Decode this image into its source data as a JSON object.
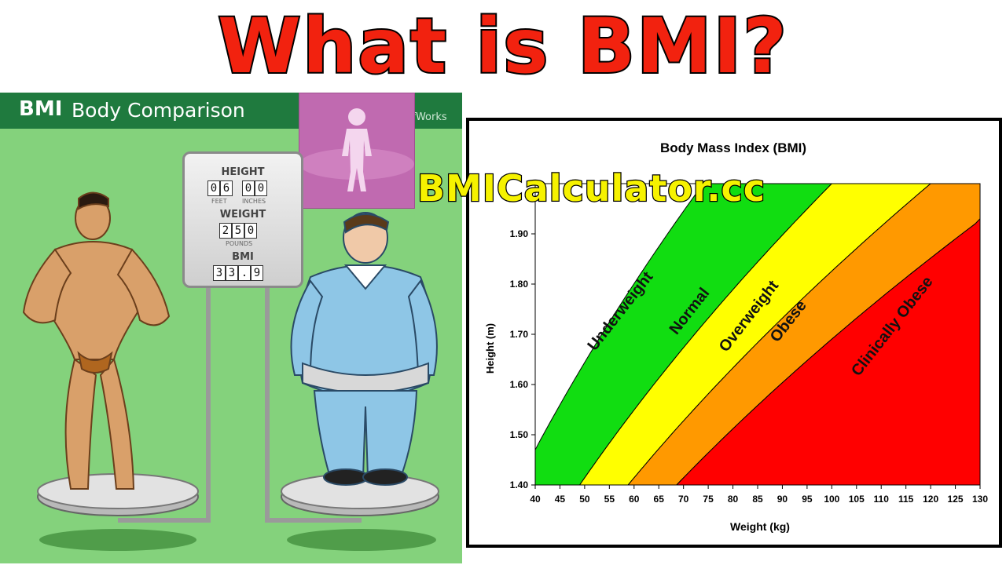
{
  "headline": "What is BMI?",
  "left_panel": {
    "header_bold": "BMI",
    "header_text": "Body Comparison",
    "header_credit": "ffWorks",
    "scale": {
      "height_label": "HEIGHT",
      "feet_digits": [
        "0",
        "6"
      ],
      "inches_digits": [
        "0",
        "0"
      ],
      "feet_label": "FEET",
      "inches_label": "INCHES",
      "weight_label": "WEIGHT",
      "weight_digits": [
        "2",
        "5",
        "0"
      ],
      "pounds_label": "POUNDS",
      "bmi_label": "BMI",
      "bmi_digits": [
        "3",
        "3",
        ".",
        "9"
      ]
    },
    "colors": {
      "panel": "#84d27c",
      "header": "#1f7a3e",
      "tile": "#c06ab0"
    }
  },
  "watermark": "BMICalculator.cc",
  "chart_data": {
    "type": "area",
    "title": "Body Mass Index (BMI)",
    "xlabel": "Weight (kg)",
    "ylabel": "Height (m)",
    "xlim": [
      40,
      130
    ],
    "ylim": [
      1.4,
      2.0
    ],
    "x_ticks": [
      "40",
      "45",
      "50",
      "55",
      "60",
      "65",
      "70",
      "75",
      "80",
      "85",
      "90",
      "95",
      "100",
      "105",
      "110",
      "115",
      "120",
      "125",
      "130"
    ],
    "y_ticks": [
      "1.40",
      "1.50",
      "1.60",
      "1.70",
      "1.80",
      "1.90"
    ],
    "bands": [
      {
        "name": "Underweight",
        "color": "#ffffff",
        "bmi_range": [
          0,
          18.5
        ]
      },
      {
        "name": "Normal",
        "color": "#11dd11",
        "bmi_range": [
          18.5,
          25
        ]
      },
      {
        "name": "Overweight",
        "color": "#ffff00",
        "bmi_range": [
          25,
          30
        ]
      },
      {
        "name": "Obese",
        "color": "#ff9900",
        "bmi_range": [
          30,
          35
        ]
      },
      {
        "name": "Clinically Obese",
        "color": "#ff0000",
        "bmi_range": [
          35,
          100
        ]
      }
    ],
    "band_labels": [
      "Underweight",
      "Normal",
      "Overweight",
      "Obese",
      "Clinically Obese"
    ],
    "grid": false,
    "legend": "none"
  }
}
